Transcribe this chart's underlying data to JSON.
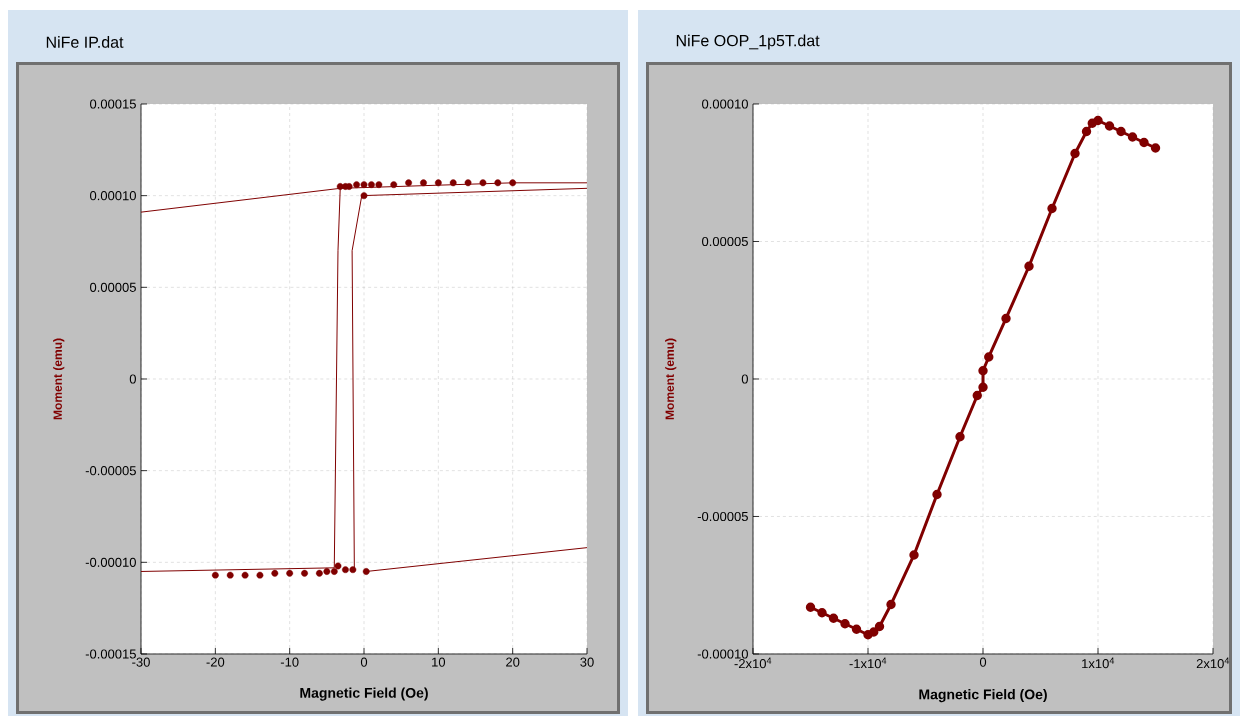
{
  "chart_data": [
    {
      "type": "line",
      "title": "NiFe IP.dat",
      "xlabel": "Magnetic Field (Oe)",
      "ylabel": "Moment (emu)",
      "xlim": [
        -30,
        30
      ],
      "ylim": [
        -0.00015,
        0.00015
      ],
      "xticks": [
        -30,
        -20,
        -10,
        0,
        10,
        20,
        30
      ],
      "yticks": [
        {
          "value": -0.00015,
          "label": "-0.00015"
        },
        {
          "value": -0.0001,
          "label": "-0.00010"
        },
        {
          "value": -5e-05,
          "label": "-0.00005"
        },
        {
          "value": 0,
          "label": "0"
        },
        {
          "value": 5e-05,
          "label": "0.00005"
        },
        {
          "value": 0.0001,
          "label": "0.00010"
        },
        {
          "value": 0.00015,
          "label": "0.00015"
        }
      ],
      "grid": true,
      "series": [
        {
          "marker": "none",
          "color": "#800000",
          "x": [
            -30,
            -3.2,
            20,
            30,
            null,
            -3.2,
            -3.5,
            -4,
            -30,
            null,
            0.3,
            0.3,
            30,
            null,
            -1.3,
            -1.6,
            -0.3,
            30
          ],
          "values": [
            9.1e-05,
            0.000104,
            0.000107,
            0.000107,
            null,
            0.000104,
            7e-05,
            -0.000103,
            -0.000105,
            null,
            -0.000105,
            -0.000105,
            -9.2e-05,
            null,
            -0.000103,
            7e-05,
            0.0001,
            0.000104
          ]
        },
        {
          "type": "scatter",
          "marker": "circle",
          "color": "#800000",
          "x": [
            -3.2,
            -2.5,
            -2,
            -1,
            0,
            1,
            2,
            4,
            6,
            8,
            10,
            12,
            14,
            16,
            18,
            20,
            0,
            -20,
            -18,
            -16,
            -14,
            -12,
            -10,
            -8,
            -6,
            -5,
            -4,
            -3.5,
            -2.5,
            -1.5,
            0.3
          ],
          "values": [
            0.000105,
            0.000105,
            0.000105,
            0.000106,
            0.000106,
            0.000106,
            0.000106,
            0.000106,
            0.000107,
            0.000107,
            0.000107,
            0.000107,
            0.000107,
            0.000107,
            0.000107,
            0.000107,
            0.0001,
            -0.000107,
            -0.000107,
            -0.000107,
            -0.000107,
            -0.000106,
            -0.000106,
            -0.000106,
            -0.000106,
            -0.000105,
            -0.000105,
            -0.000102,
            -0.000104,
            -0.000104,
            -0.000105
          ]
        }
      ]
    },
    {
      "type": "line",
      "title": "NiFe OOP_1p5T.dat",
      "xlabel": "Magnetic Field (Oe)",
      "ylabel": "Moment (emu)",
      "xlim": [
        -20000,
        20000
      ],
      "ylim": [
        -0.0001,
        0.0001
      ],
      "xticks": [
        {
          "value": -20000,
          "label": "-2x10$^{4}$"
        },
        {
          "value": -10000,
          "label": "-1x10$^{4}$"
        },
        {
          "value": 0,
          "label": "0"
        },
        {
          "value": 10000,
          "label": "1x10$^{4}$"
        },
        {
          "value": 20000,
          "label": "2x10$^{4}$"
        }
      ],
      "yticks": [
        {
          "value": -0.0001,
          "label": "-0.00010"
        },
        {
          "value": -5e-05,
          "label": "-0.00005"
        },
        {
          "value": 0,
          "label": "0"
        },
        {
          "value": 5e-05,
          "label": "0.00005"
        },
        {
          "value": 0.0001,
          "label": "0.00010"
        }
      ],
      "grid": true,
      "series": [
        {
          "marker": "circle",
          "color": "#800000",
          "x": [
            -15000,
            -14000,
            -13000,
            -12000,
            -11000,
            -10000,
            -9500,
            -9000,
            -8000,
            -6000,
            -4000,
            -2000,
            -500,
            0,
            0,
            500,
            2000,
            4000,
            6000,
            8000,
            9000,
            9500,
            10000,
            11000,
            12000,
            13000,
            14000,
            15000
          ],
          "values": [
            -8.3e-05,
            -8.5e-05,
            -8.7e-05,
            -8.9e-05,
            -9.1e-05,
            -9.3e-05,
            -9.2e-05,
            -9e-05,
            -8.2e-05,
            -6.4e-05,
            -4.2e-05,
            -2.1e-05,
            -6e-06,
            -3e-06,
            3e-06,
            8e-06,
            2.2e-05,
            4.1e-05,
            6.2e-05,
            8.2e-05,
            9e-05,
            9.3e-05,
            9.4e-05,
            9.2e-05,
            9e-05,
            8.8e-05,
            8.6e-05,
            8.4e-05
          ]
        }
      ]
    }
  ]
}
